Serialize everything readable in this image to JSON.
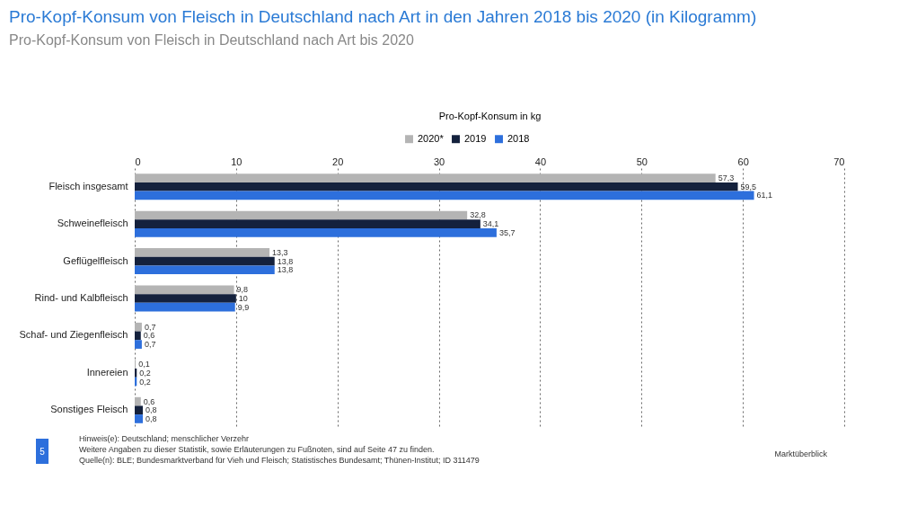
{
  "chart_data": {
    "type": "bar",
    "orientation": "horizontal",
    "title": "Pro-Kopf-Konsum von Fleisch in Deutschland nach Art in den Jahren 2018 bis 2020 (in Kilogramm)",
    "subtitle": "Pro-Kopf-Konsum von Fleisch in Deutschland nach Art bis 2020",
    "xlabel": "Pro-Kopf-Konsum in kg",
    "categories": [
      "Fleisch insgesamt",
      "Schweinefleisch",
      "Geflügelfleisch",
      "Rind- und Kalbfleisch",
      "Schaf- und Ziegenfleisch",
      "Innereien",
      "Sonstiges Fleisch"
    ],
    "series": [
      {
        "name": "2020*",
        "color": "#b4b4b4",
        "values": [
          57.3,
          32.8,
          13.3,
          9.8,
          0.7,
          0.1,
          0.6
        ],
        "value_labels": [
          "57,3",
          "32,8",
          "13,3",
          "9,8",
          "0,7",
          "0,1",
          "0,6"
        ]
      },
      {
        "name": "2019",
        "color": "#14213d",
        "values": [
          59.5,
          34.1,
          13.8,
          10,
          0.6,
          0.2,
          0.8
        ],
        "value_labels": [
          "59,5",
          "34,1",
          "13,8",
          "10",
          "0,6",
          "0,2",
          "0,8"
        ]
      },
      {
        "name": "2018",
        "color": "#2d6fdc",
        "values": [
          61.1,
          35.7,
          13.8,
          9.9,
          0.7,
          0.2,
          0.8
        ],
        "value_labels": [
          "61,1",
          "35,7",
          "13,8",
          "9,9",
          "0,7",
          "0,2",
          "0,8"
        ]
      }
    ],
    "xlim": [
      0,
      70
    ],
    "xticks": [
      0,
      10,
      20,
      30,
      40,
      50,
      60,
      70
    ],
    "grid": "x",
    "legend": "top",
    "annotations": [
      "Hinweis(e): Deutschland; menschlicher Verzehr",
      "Weitere Angaben zu dieser Statistik, sowie Erläuterungen zu Fußnoten, sind auf Seite 47 zu finden.",
      "Quelle(n): BLE; Bundesmarktverband für Vieh und Fleisch; Statistisches Bundesamt; Thünen-Institut; ID 311479",
      "5",
      "Marktüberblick"
    ]
  }
}
